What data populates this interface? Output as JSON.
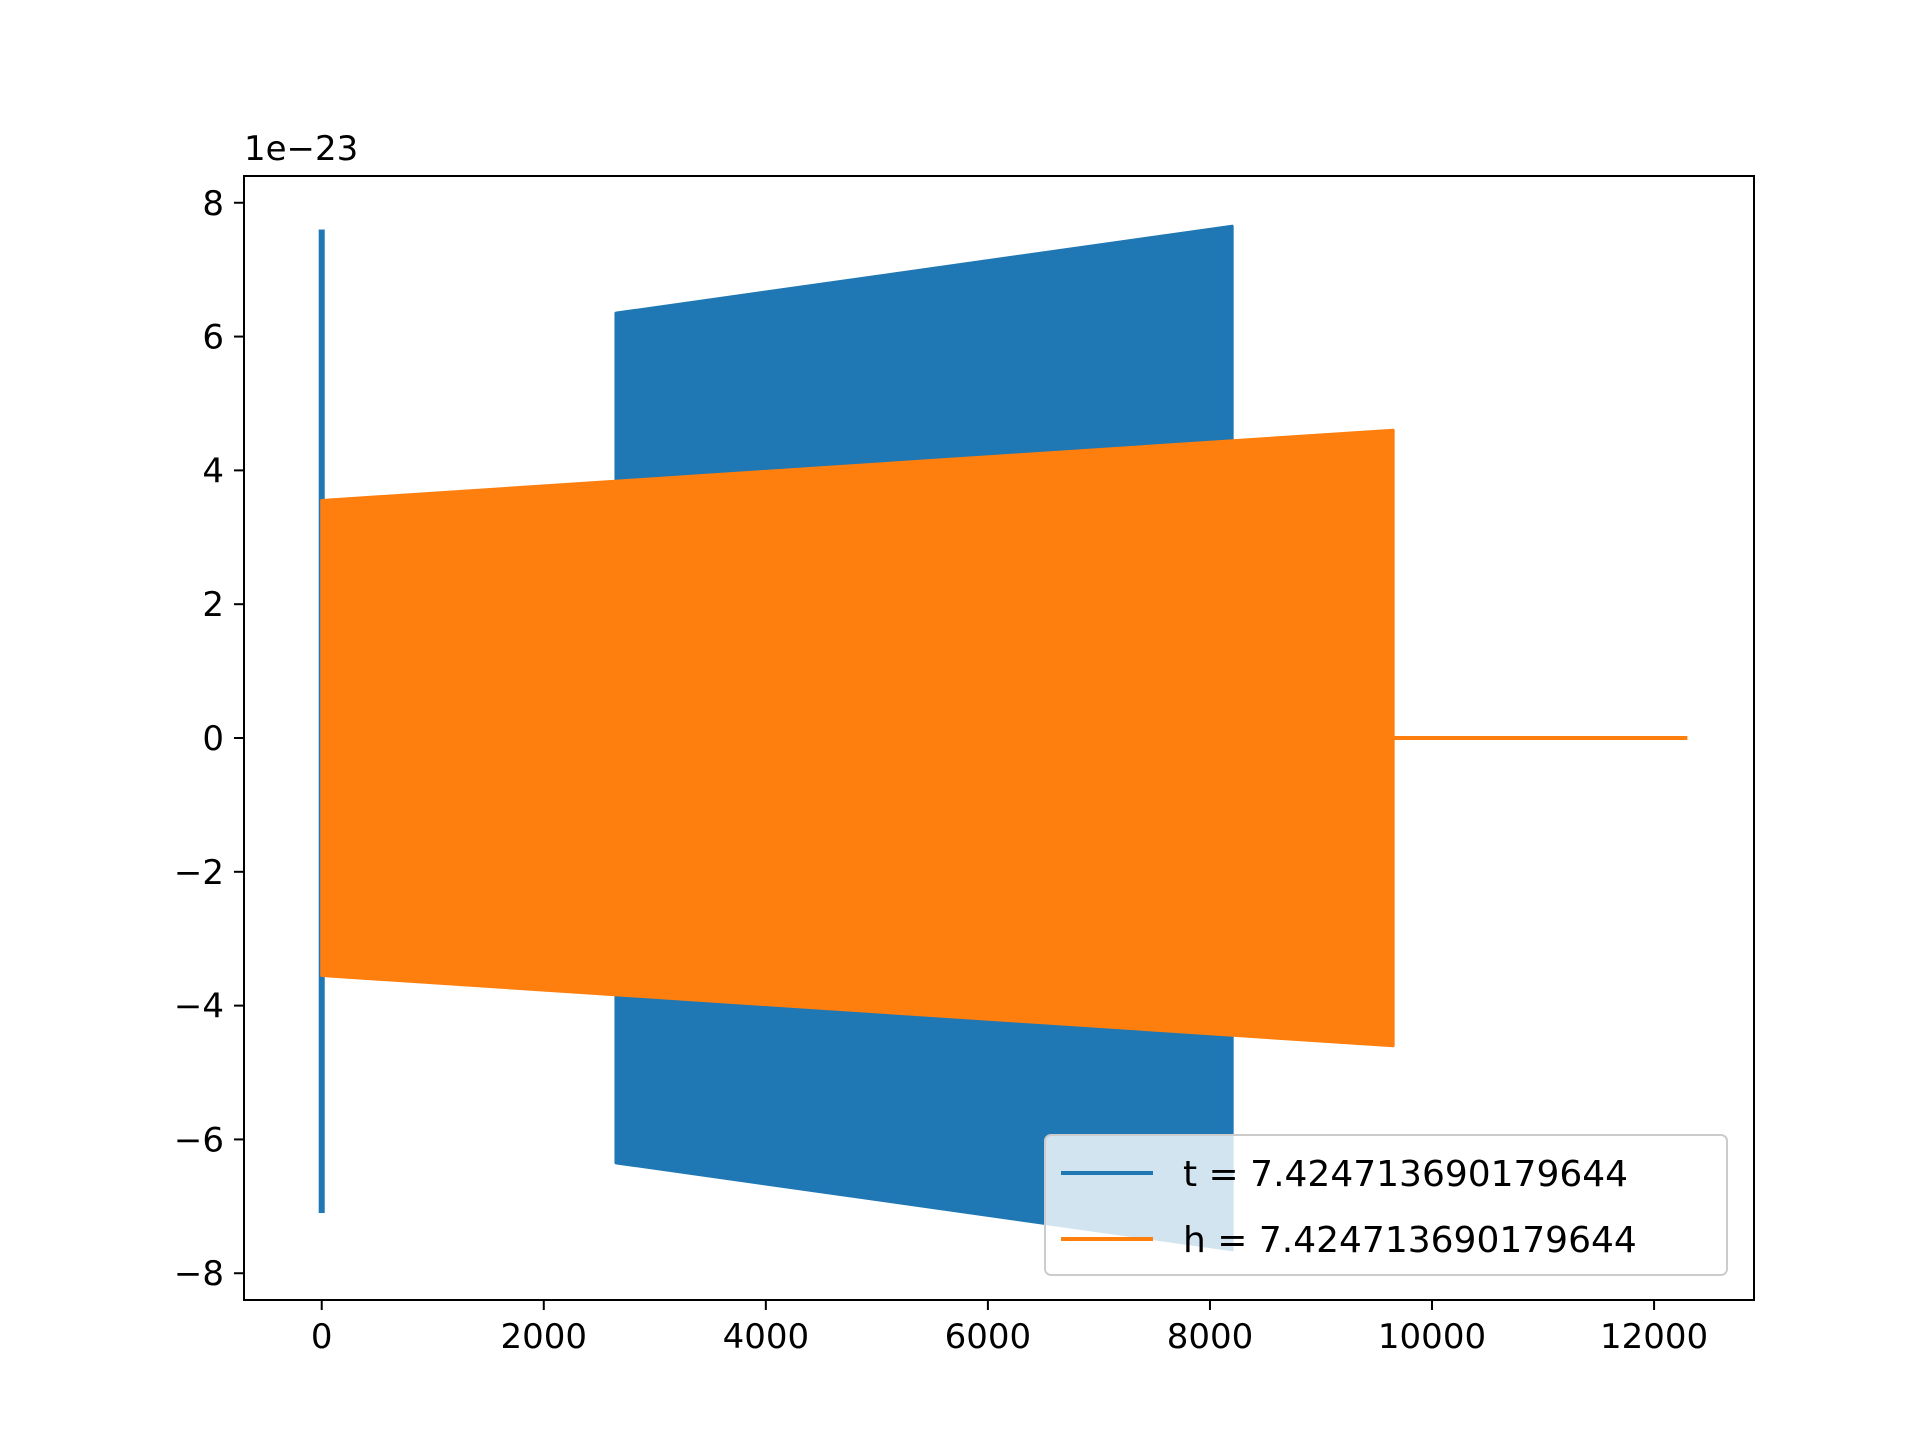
{
  "chart_data": {
    "type": "line",
    "title": "",
    "xlabel": "",
    "ylabel": "",
    "offset_label": "1e−23",
    "xlim": [
      -700,
      12900
    ],
    "ylim": [
      -8.4,
      8.4
    ],
    "xticks": [
      0,
      2000,
      4000,
      6000,
      8000,
      10000,
      12000
    ],
    "xtick_labels": [
      "0",
      "2000",
      "4000",
      "6000",
      "8000",
      "10000",
      "12000"
    ],
    "yticks": [
      -8,
      -6,
      -4,
      -2,
      0,
      2,
      4,
      6,
      8
    ],
    "ytick_labels": [
      "−8",
      "−6",
      "−4",
      "−2",
      "0",
      "2",
      "4",
      "6",
      "8"
    ],
    "grid": false,
    "legend_position": "lower-right",
    "series": [
      {
        "name": "t = 7.424713690179644",
        "color": "#1f77b4",
        "segments": [
          {
            "kind": "spike",
            "x": 0,
            "upper": 7.6,
            "lower": -7.1
          },
          {
            "kind": "envelope",
            "x": [
              2650,
              8200
            ],
            "upper": [
              6.35,
              7.65
            ],
            "lower": [
              -6.35,
              -7.65
            ]
          }
        ]
      },
      {
        "name": "h = 7.424713690179644",
        "color": "#ff7f0e",
        "segments": [
          {
            "kind": "envelope",
            "x": [
              0,
              9650
            ],
            "upper": [
              3.55,
              4.6
            ],
            "lower": [
              -3.55,
              -4.6
            ]
          },
          {
            "kind": "flat",
            "x": [
              9650,
              12300
            ],
            "y": 0
          }
        ]
      }
    ]
  }
}
